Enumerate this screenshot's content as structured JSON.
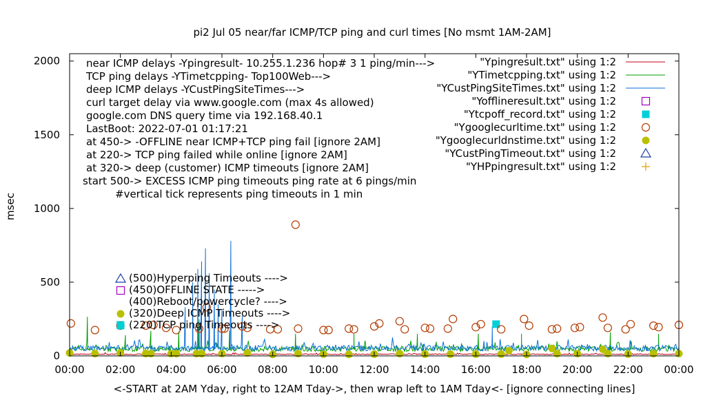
{
  "chart_data": {
    "type": "line",
    "title": "pi2  Jul 05  near/far ICMP/TCP ping and curl times [No msmt 1AM-2AM]",
    "xlabel": "<-START at 2AM Yday, right to 12AM Tday->, then wrap left to 1AM Tday<- [ignore connecting lines]",
    "ylabel": "msec",
    "xlim": [
      0,
      24
    ],
    "ylim": [
      0,
      2050
    ],
    "grid": false,
    "legend_position": "top-right",
    "x_ticks": [
      {
        "v": 0,
        "label": "00:00"
      },
      {
        "v": 2,
        "label": "02:00"
      },
      {
        "v": 4,
        "label": "04:00"
      },
      {
        "v": 6,
        "label": "06:00"
      },
      {
        "v": 8,
        "label": "08:00"
      },
      {
        "v": 10,
        "label": "10:00"
      },
      {
        "v": 12,
        "label": "12:00"
      },
      {
        "v": 14,
        "label": "14:00"
      },
      {
        "v": 16,
        "label": "16:00"
      },
      {
        "v": 18,
        "label": "18:00"
      },
      {
        "v": 20,
        "label": "20:00"
      },
      {
        "v": 22,
        "label": "22:00"
      },
      {
        "v": 24,
        "label": "00:00"
      }
    ],
    "y_ticks": [
      {
        "v": 0,
        "label": "0"
      },
      {
        "v": 500,
        "label": "500"
      },
      {
        "v": 1000,
        "label": "1000"
      },
      {
        "v": 1500,
        "label": "1500"
      },
      {
        "v": 2000,
        "label": "2000"
      }
    ],
    "annotations": [
      "near ICMP delays -Ypingresult- 10.255.1.236 hop# 3 1 ping/min--->",
      "TCP ping delays -YTimetcpping- Top100Web--->",
      "deep ICMP delays -YCustPingSiteTimes--->",
      "curl target delay via www.google.com (max 4s allowed)",
      "google.com DNS query time via 192.168.40.1",
      "LastBoot: 2022-07-01 01:17:21",
      "at 450-> -OFFLINE near ICMP+TCP ping fail [ignore 2AM]",
      "at 220-> TCP ping failed while online [ignore 2AM]",
      "at 320-> deep (customer) ICMP timeouts [ignore 2AM]",
      "start 500-> EXCESS ICMP ping timeouts ping rate at 6 pings/min",
      "#vertical tick represents ping timeouts in 1 min"
    ],
    "marker_key": [
      {
        "label": "(500)Hyperping Timeouts ---->",
        "series": 7
      },
      {
        "label": "(450)OFFLINE STATE ----->",
        "series": 3
      },
      {
        "label": "(400)Reboot/powercycle? ---->",
        "series": -1
      },
      {
        "label": "(320)Deep ICMP Timeouts ---->",
        "series": 6
      },
      {
        "label": "(220)TCP ping Timeouts ---->",
        "series": 4
      }
    ],
    "series": [
      {
        "name": "\"Ypingresult.txt\" using 1:2",
        "style": "line",
        "color": "#c0001a",
        "baseline": 10,
        "jitter": 6,
        "spikes": []
      },
      {
        "name": "\"YTimetcpping.txt\" using 1:2",
        "style": "line",
        "color": "#009e00",
        "baseline": 40,
        "jitter": 35,
        "spikes": [
          [
            0.7,
            265
          ],
          [
            2.2,
            140
          ],
          [
            3.2,
            170
          ],
          [
            4.3,
            165
          ],
          [
            5.1,
            250
          ],
          [
            5.5,
            230
          ],
          [
            6.3,
            170
          ],
          [
            8.9,
            150
          ],
          [
            11.2,
            150
          ],
          [
            13.7,
            150
          ],
          [
            16.1,
            150
          ],
          [
            17.8,
            150
          ],
          [
            21.3,
            160
          ],
          [
            23.2,
            150
          ]
        ]
      },
      {
        "name": "\"YCustPingSiteTimes.txt\" using 1:2",
        "style": "line",
        "color": "#0a6ed8",
        "baseline": 45,
        "jitter": 40,
        "spikes": [
          [
            4.55,
            330
          ],
          [
            4.85,
            500
          ],
          [
            5.05,
            590
          ],
          [
            5.2,
            640
          ],
          [
            5.35,
            730
          ],
          [
            5.5,
            560
          ],
          [
            5.7,
            450
          ],
          [
            5.85,
            350
          ],
          [
            6.0,
            310
          ],
          [
            6.35,
            780
          ],
          [
            6.8,
            270
          ],
          [
            16.65,
            200
          ]
        ]
      },
      {
        "name": "\"Yofflineresult.txt\" using 1:2",
        "style": "point",
        "shape": "open-square",
        "color": "#a000c0",
        "points": []
      },
      {
        "name": "\"Ytcpoff_record.txt\" using 1:2",
        "style": "point",
        "shape": "filled-square",
        "color": "#00d0d8",
        "points": [
          [
            2.0,
            210
          ],
          [
            16.8,
            215
          ]
        ]
      },
      {
        "name": "\"Ygooglecurltime.txt\" using 1:2",
        "style": "point",
        "shape": "open-circle",
        "color": "#b33a00",
        "points": [
          [
            0.05,
            220
          ],
          [
            1.0,
            175
          ],
          [
            2.0,
            205
          ],
          [
            3.0,
            205
          ],
          [
            3.3,
            210
          ],
          [
            3.8,
            190
          ],
          [
            4.2,
            175
          ],
          [
            5.1,
            185
          ],
          [
            5.4,
            330
          ],
          [
            6.0,
            185
          ],
          [
            6.1,
            185
          ],
          [
            6.8,
            200
          ],
          [
            7.0,
            190
          ],
          [
            7.9,
            180
          ],
          [
            8.2,
            180
          ],
          [
            8.9,
            890
          ],
          [
            9.0,
            185
          ],
          [
            10.0,
            175
          ],
          [
            10.2,
            175
          ],
          [
            11.0,
            185
          ],
          [
            11.2,
            180
          ],
          [
            12.0,
            200
          ],
          [
            12.2,
            220
          ],
          [
            13.0,
            235
          ],
          [
            13.2,
            180
          ],
          [
            14.0,
            190
          ],
          [
            14.2,
            185
          ],
          [
            14.9,
            185
          ],
          [
            15.1,
            250
          ],
          [
            16.0,
            195
          ],
          [
            16.2,
            215
          ],
          [
            17.0,
            180
          ],
          [
            17.9,
            250
          ],
          [
            18.1,
            205
          ],
          [
            19.0,
            180
          ],
          [
            19.2,
            185
          ],
          [
            19.9,
            190
          ],
          [
            20.1,
            195
          ],
          [
            21.0,
            260
          ],
          [
            21.2,
            190
          ],
          [
            21.9,
            180
          ],
          [
            22.1,
            215
          ],
          [
            23.0,
            205
          ],
          [
            23.2,
            195
          ],
          [
            24.0,
            210
          ]
        ]
      },
      {
        "name": "\"Ygooglecurldnstime.txt\" using 1:2",
        "style": "point",
        "shape": "filled-circle",
        "color": "#b8c000",
        "points": [
          [
            0.0,
            20
          ],
          [
            1.0,
            15
          ],
          [
            2.0,
            20
          ],
          [
            3.0,
            15
          ],
          [
            3.2,
            15
          ],
          [
            4.0,
            15
          ],
          [
            4.2,
            15
          ],
          [
            5.0,
            15
          ],
          [
            5.2,
            15
          ],
          [
            6.0,
            15
          ],
          [
            7.0,
            20
          ],
          [
            8.0,
            10
          ],
          [
            9.0,
            15
          ],
          [
            10.0,
            12
          ],
          [
            11.0,
            10
          ],
          [
            12.0,
            12
          ],
          [
            13.0,
            15
          ],
          [
            14.0,
            12
          ],
          [
            15.0,
            12
          ],
          [
            16.0,
            12
          ],
          [
            17.0,
            12
          ],
          [
            17.3,
            35
          ],
          [
            18.0,
            10
          ],
          [
            19.0,
            50
          ],
          [
            19.2,
            15
          ],
          [
            20.0,
            15
          ],
          [
            21.0,
            45
          ],
          [
            21.2,
            15
          ],
          [
            22.0,
            12
          ],
          [
            23.0,
            15
          ],
          [
            24.0,
            15
          ]
        ]
      },
      {
        "name": "\"YCustPingTimeout.txt\" using 1:2",
        "style": "point",
        "shape": "open-triangle",
        "color": "#1a3aa8",
        "points": []
      },
      {
        "name": "\"YHPpingresult.txt\" using 1:2",
        "style": "point",
        "shape": "plus",
        "color": "#e0a000",
        "points": []
      }
    ]
  }
}
